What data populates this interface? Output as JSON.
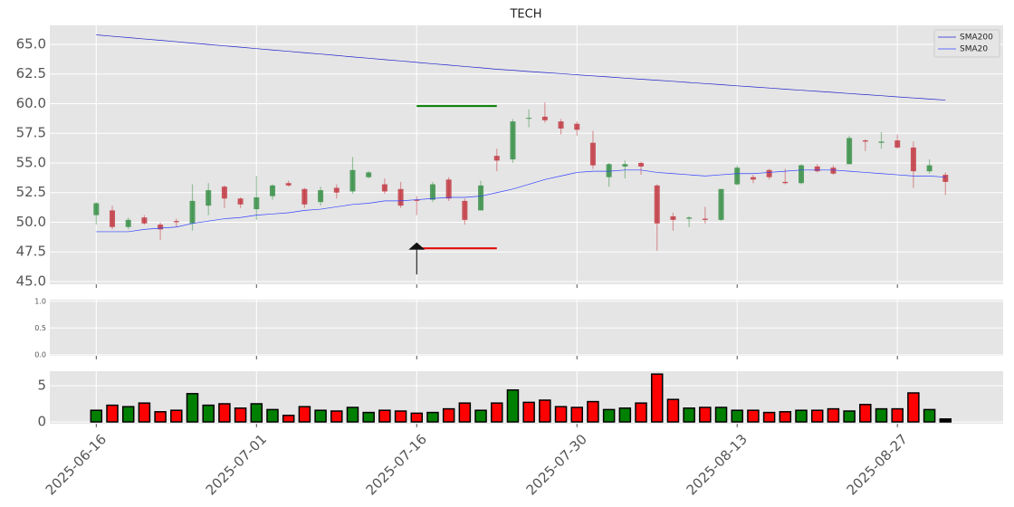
{
  "chart_data": [
    {
      "type": "candlestick",
      "title": "TECH",
      "x": [
        0,
        1,
        2,
        3,
        4,
        5,
        6,
        7,
        8,
        9,
        10,
        11,
        12,
        13,
        14,
        15,
        16,
        17,
        18,
        19,
        20,
        21,
        22,
        23,
        24,
        25,
        26,
        27,
        28,
        29,
        30,
        31,
        32,
        33,
        34,
        35,
        36,
        37,
        38,
        39,
        40,
        41,
        42,
        43,
        44,
        45,
        46,
        47,
        48,
        49,
        50,
        51,
        52,
        53
      ],
      "open": [
        50.6,
        51.0,
        49.6,
        50.4,
        49.8,
        50.1,
        49.9,
        51.4,
        53.0,
        52.0,
        51.1,
        52.2,
        53.3,
        52.8,
        51.7,
        52.9,
        52.6,
        53.8,
        53.2,
        52.8,
        51.9,
        51.9,
        53.6,
        51.8,
        51.0,
        55.6,
        55.3,
        58.8,
        58.9,
        58.5,
        58.3,
        56.7,
        53.8,
        54.7,
        55.0,
        53.1,
        50.5,
        50.3,
        50.3,
        50.2,
        53.2,
        53.8,
        54.4,
        53.4,
        53.3,
        54.7,
        54.6,
        54.9,
        56.9,
        56.7,
        56.9,
        56.3,
        54.3,
        54.0
      ],
      "high": [
        51.7,
        51.4,
        50.4,
        50.6,
        50.0,
        50.3,
        53.2,
        53.3,
        53.1,
        52.1,
        53.9,
        53.2,
        53.5,
        52.9,
        53.0,
        53.2,
        55.5,
        54.3,
        53.7,
        53.4,
        52.2,
        53.4,
        53.8,
        52.0,
        53.5,
        56.2,
        58.7,
        59.5,
        60.1,
        58.7,
        58.5,
        57.7,
        55.0,
        55.2,
        55.1,
        53.2,
        50.8,
        50.5,
        51.3,
        52.8,
        54.8,
        54.0,
        54.5,
        54.5,
        54.9,
        54.9,
        54.8,
        57.3,
        57.0,
        57.6,
        57.4,
        56.8,
        55.3,
        54.2
      ],
      "low": [
        49.8,
        49.4,
        49.4,
        49.8,
        48.5,
        49.6,
        49.3,
        50.6,
        51.2,
        51.2,
        50.2,
        51.9,
        53.0,
        51.2,
        51.4,
        52.0,
        52.4,
        53.7,
        52.4,
        51.2,
        50.6,
        51.7,
        51.8,
        49.8,
        51.0,
        54.3,
        55.0,
        58.0,
        58.4,
        57.4,
        57.3,
        54.5,
        53.0,
        53.7,
        54.0,
        47.6,
        49.3,
        49.6,
        49.9,
        50.1,
        53.1,
        53.3,
        53.6,
        53.2,
        53.2,
        54.2,
        54.0,
        54.9,
        56.0,
        56.2,
        56.2,
        52.9,
        54.1,
        52.3
      ],
      "close": [
        51.6,
        49.6,
        50.2,
        49.9,
        49.4,
        50.0,
        51.8,
        52.7,
        52.0,
        51.5,
        52.1,
        53.1,
        53.1,
        51.5,
        52.7,
        52.5,
        54.4,
        54.2,
        52.6,
        51.4,
        51.8,
        53.2,
        52.0,
        50.2,
        53.1,
        55.2,
        58.5,
        58.8,
        58.6,
        57.9,
        57.8,
        54.8,
        54.9,
        54.9,
        54.7,
        49.9,
        50.2,
        50.4,
        50.2,
        52.8,
        54.6,
        53.6,
        53.8,
        53.3,
        54.8,
        54.3,
        54.1,
        57.1,
        56.8,
        56.8,
        56.3,
        54.3,
        54.8,
        53.4
      ],
      "up_color": "#2e8b3e",
      "down_color": "#c0303a",
      "series": [
        {
          "name": "SMA200",
          "color": "#2222cc",
          "values": [
            65.8,
            65.68,
            65.57,
            65.45,
            65.34,
            65.22,
            65.1,
            64.99,
            64.87,
            64.76,
            64.64,
            64.52,
            64.41,
            64.29,
            64.18,
            64.06,
            63.94,
            63.83,
            63.71,
            63.6,
            63.48,
            63.36,
            63.25,
            63.13,
            63.02,
            62.9,
            62.81,
            62.71,
            62.62,
            62.53,
            62.43,
            62.34,
            62.25,
            62.15,
            62.06,
            61.97,
            61.88,
            61.78,
            61.69,
            61.6,
            61.5,
            61.41,
            61.32,
            61.22,
            61.13,
            61.04,
            60.95,
            60.85,
            60.76,
            60.67,
            60.57,
            60.48,
            60.39,
            60.3
          ]
        },
        {
          "name": "SMA20",
          "color": "#3344ff",
          "values": [
            49.2,
            49.2,
            49.2,
            49.4,
            49.5,
            49.6,
            49.9,
            50.1,
            50.3,
            50.4,
            50.6,
            50.7,
            50.8,
            51.0,
            51.1,
            51.3,
            51.5,
            51.6,
            51.8,
            51.8,
            51.9,
            52.0,
            52.1,
            52.1,
            52.2,
            52.5,
            52.8,
            53.2,
            53.6,
            53.9,
            54.2,
            54.3,
            54.3,
            54.4,
            54.4,
            54.2,
            54.1,
            54.0,
            53.9,
            54.0,
            54.1,
            54.1,
            54.2,
            54.3,
            54.4,
            54.4,
            54.4,
            54.3,
            54.2,
            54.1,
            54.0,
            53.9,
            53.9,
            53.8
          ]
        }
      ],
      "hlines": [
        {
          "value": 59.8,
          "x": [
            20,
            25
          ],
          "color": "#008000"
        },
        {
          "value": 47.8,
          "x": [
            20,
            25
          ],
          "color": "#e00000"
        }
      ],
      "arrows": [
        {
          "x": 20,
          "y": [
            45.6,
            48.3
          ]
        }
      ],
      "xlim": [
        -2.9,
        56.6
      ],
      "ylim": [
        44.77,
        66.6
      ],
      "yticks": [
        {
          "value": 45,
          "label": "45.0"
        },
        {
          "value": 47.5,
          "label": "47.5"
        },
        {
          "value": 50,
          "label": "50.0"
        },
        {
          "value": 52.5,
          "label": "52.5"
        },
        {
          "value": 55,
          "label": "55.0"
        },
        {
          "value": 57.5,
          "label": "57.5"
        },
        {
          "value": 60,
          "label": "60.0"
        },
        {
          "value": 62.5,
          "label": "62.5"
        },
        {
          "value": 65,
          "label": "65.0"
        }
      ],
      "grid": true,
      "legend": "upper right"
    },
    {
      "type": "empty",
      "xlim": [
        -2.9,
        56.6
      ],
      "ylim": [
        -0.02,
        1.03
      ],
      "yticks": [
        {
          "value": 0,
          "label": "0.0"
        },
        {
          "value": 0.5,
          "label": "0.5"
        },
        {
          "value": 1,
          "label": "1.0"
        }
      ],
      "grid": true
    },
    {
      "type": "bar",
      "x": [
        0,
        1,
        2,
        3,
        4,
        5,
        6,
        7,
        8,
        9,
        10,
        11,
        12,
        13,
        14,
        15,
        16,
        17,
        18,
        19,
        20,
        21,
        22,
        23,
        24,
        25,
        26,
        27,
        28,
        29,
        30,
        31,
        32,
        33,
        34,
        35,
        36,
        37,
        38,
        39,
        40,
        41,
        42,
        43,
        44,
        45,
        46,
        47,
        48,
        49,
        50,
        51,
        52,
        53
      ],
      "values": [
        1.6,
        2.3,
        2.1,
        2.6,
        1.4,
        1.6,
        3.9,
        2.3,
        2.5,
        1.9,
        2.5,
        1.7,
        0.9,
        2.1,
        1.6,
        1.5,
        2.0,
        1.3,
        1.6,
        1.5,
        1.2,
        1.3,
        1.8,
        2.6,
        1.6,
        2.6,
        4.4,
        2.7,
        3.0,
        2.1,
        2.0,
        2.8,
        1.7,
        1.9,
        2.6,
        6.6,
        3.1,
        1.9,
        2.0,
        2.0,
        1.6,
        1.6,
        1.3,
        1.4,
        1.6,
        1.6,
        1.8,
        1.5,
        2.4,
        1.8,
        1.8,
        4.0,
        1.7,
        0.4
      ],
      "colors": [
        "#008000",
        "#ff0000",
        "#008000",
        "#ff0000",
        "#ff0000",
        "#ff0000",
        "#008000",
        "#008000",
        "#ff0000",
        "#ff0000",
        "#008000",
        "#008000",
        "#ff0000",
        "#ff0000",
        "#008000",
        "#ff0000",
        "#008000",
        "#008000",
        "#ff0000",
        "#ff0000",
        "#ff0000",
        "#008000",
        "#ff0000",
        "#ff0000",
        "#008000",
        "#ff0000",
        "#008000",
        "#ff0000",
        "#ff0000",
        "#ff0000",
        "#ff0000",
        "#ff0000",
        "#008000",
        "#008000",
        "#ff0000",
        "#ff0000",
        "#ff0000",
        "#008000",
        "#ff0000",
        "#008000",
        "#008000",
        "#ff0000",
        "#ff0000",
        "#ff0000",
        "#008000",
        "#ff0000",
        "#ff0000",
        "#008000",
        "#ff0000",
        "#008000",
        "#ff0000",
        "#ff0000",
        "#008000",
        "#000000"
      ],
      "xlim": [
        -2.9,
        56.6
      ],
      "ylim": [
        -0.25,
        7.0
      ],
      "yticks": [
        0,
        5
      ],
      "grid": true,
      "xticks": [
        {
          "value": 0,
          "label": "2025-06-16"
        },
        {
          "value": 10,
          "label": "2025-07-01"
        },
        {
          "value": 20,
          "label": "2025-07-16"
        },
        {
          "value": 30,
          "label": "2025-07-30"
        },
        {
          "value": 40,
          "label": "2025-08-13"
        },
        {
          "value": 50,
          "label": "2025-08-27"
        }
      ]
    }
  ]
}
